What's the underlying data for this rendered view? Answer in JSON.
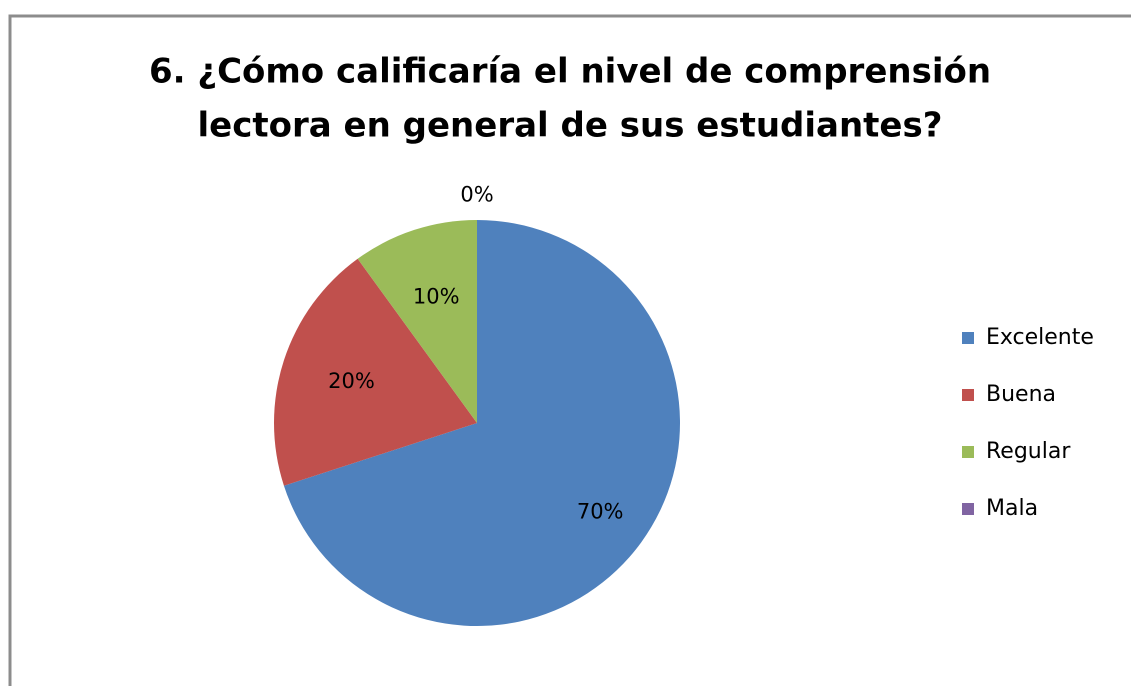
{
  "chart_data": {
    "type": "pie",
    "title": [
      "6.    ¿Cómo calificaría el nivel de comprensión",
      "lectora en general de sus estudiantes?"
    ],
    "categories": [
      "Excelente",
      "Buena",
      "Regular",
      "Mala"
    ],
    "values": [
      70,
      20,
      10,
      0
    ],
    "value_labels": [
      "70%",
      "20%",
      "10%",
      "0%"
    ],
    "colors": [
      "#4f81bd",
      "#c0504d",
      "#9bbb59",
      "#8064a2"
    ],
    "legend": "right"
  }
}
